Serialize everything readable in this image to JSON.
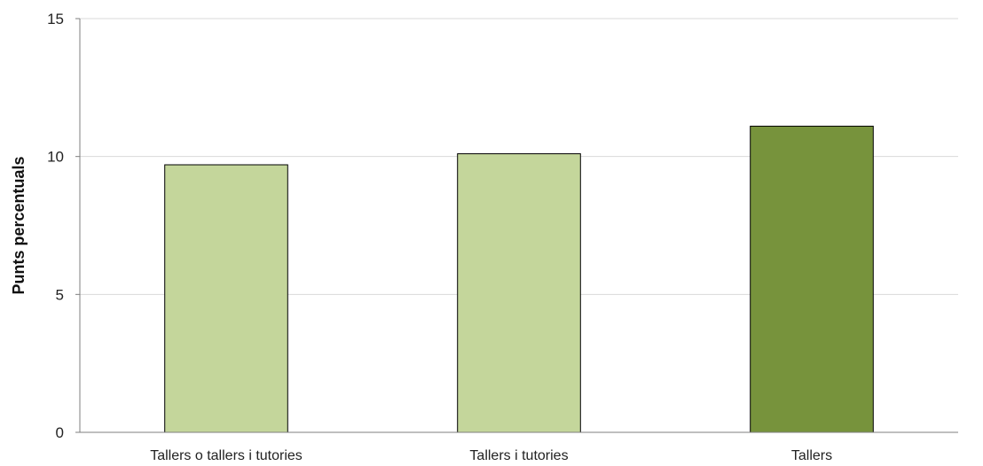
{
  "chart_data": {
    "type": "bar",
    "title": "",
    "xlabel": "",
    "ylabel": "Punts percentuals",
    "categories": [
      "Tallers o tallers i tutories",
      "Tallers i tutories",
      "Tallers"
    ],
    "values": [
      9.7,
      10.1,
      11.1
    ],
    "ylim": [
      0,
      15
    ],
    "yticks": [
      0,
      5,
      10,
      15
    ],
    "bar_colors": [
      "#c4d69b",
      "#c4d69b",
      "#77933c"
    ],
    "grid": true,
    "legend": "none"
  }
}
